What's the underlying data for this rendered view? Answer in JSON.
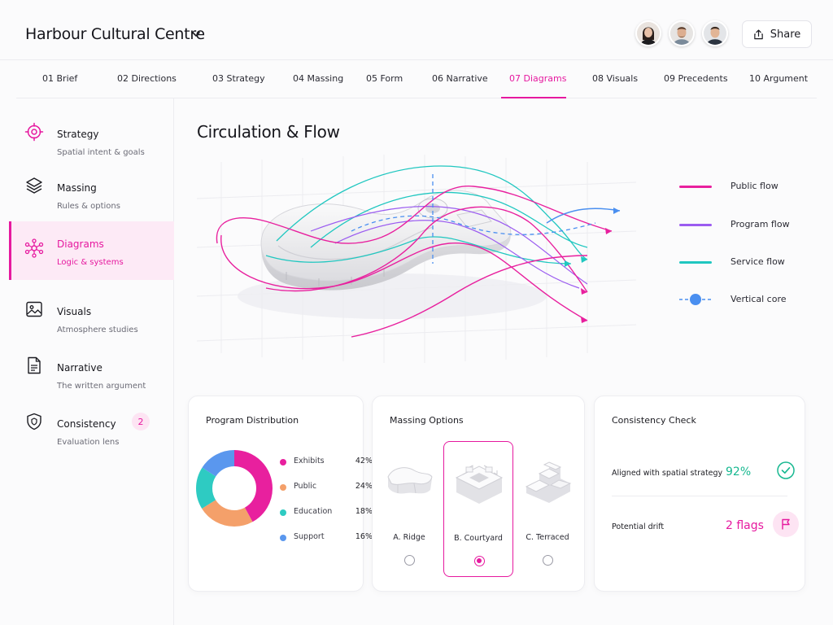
{
  "header": {
    "project_title": "Harbour Cultural Centre",
    "share_label": "Share"
  },
  "tabs": [
    {
      "label": "01 Brief"
    },
    {
      "label": "02 Directions"
    },
    {
      "label": "03 Strategy"
    },
    {
      "label": "04 Massing"
    },
    {
      "label": "05 Form"
    },
    {
      "label": "06 Narrative"
    },
    {
      "label": "07 Diagrams",
      "active": true
    },
    {
      "label": "08 Visuals"
    },
    {
      "label": "09 Precedents"
    },
    {
      "label": "10 Argument"
    }
  ],
  "sidebar": {
    "items": [
      {
        "label": "Strategy",
        "sub": "Spatial intent & goals",
        "icon": "target-icon"
      },
      {
        "label": "Massing",
        "sub": "Rules & options",
        "icon": "layers-icon"
      },
      {
        "label": "Diagrams",
        "sub": "Logic & systems",
        "icon": "network-icon",
        "active": true
      },
      {
        "label": "Visuals",
        "sub": "Atmosphere studies",
        "icon": "image-icon"
      },
      {
        "label": "Narrative",
        "sub": "The written argument",
        "icon": "document-icon"
      },
      {
        "label": "Consistency",
        "sub": "Evaluation lens",
        "icon": "shield-icon",
        "badge": "2"
      }
    ]
  },
  "main": {
    "title": "Circulation & Flow"
  },
  "legend": [
    {
      "label": "Public flow",
      "color": "#e8209e"
    },
    {
      "label": "Program flow",
      "color": "#9b5cf0"
    },
    {
      "label": "Service flow",
      "color": "#20c7c0"
    },
    {
      "label": "Vertical core",
      "color": "#4a8ff0"
    }
  ],
  "program_distribution": {
    "title": "Program Distribution",
    "items": [
      {
        "name": "Exhibits",
        "value": "42%",
        "color": "#e8209e"
      },
      {
        "name": "Public",
        "value": "24%",
        "color": "#f4a06a"
      },
      {
        "name": "Education",
        "value": "18%",
        "color": "#2ecbc2"
      },
      {
        "name": "Support",
        "value": "16%",
        "color": "#5a97ee"
      }
    ]
  },
  "massing_options": {
    "title": "Massing Options",
    "options": [
      {
        "label": "A. Ridge",
        "selected": false
      },
      {
        "label": "B. Courtyard",
        "selected": true
      },
      {
        "label": "C. Terraced",
        "selected": false
      }
    ]
  },
  "consistency_check": {
    "title": "Consistency Check",
    "rows": [
      {
        "label": "Aligned with spatial strategy",
        "value": "92%",
        "color": "#17b890",
        "icon": "check-circle-icon"
      },
      {
        "label": "Potential drift",
        "value": "2 flags",
        "color": "#e6199f",
        "icon": "flag-icon"
      }
    ]
  },
  "colors": {
    "accent": "#e6199f",
    "success": "#17b890"
  }
}
